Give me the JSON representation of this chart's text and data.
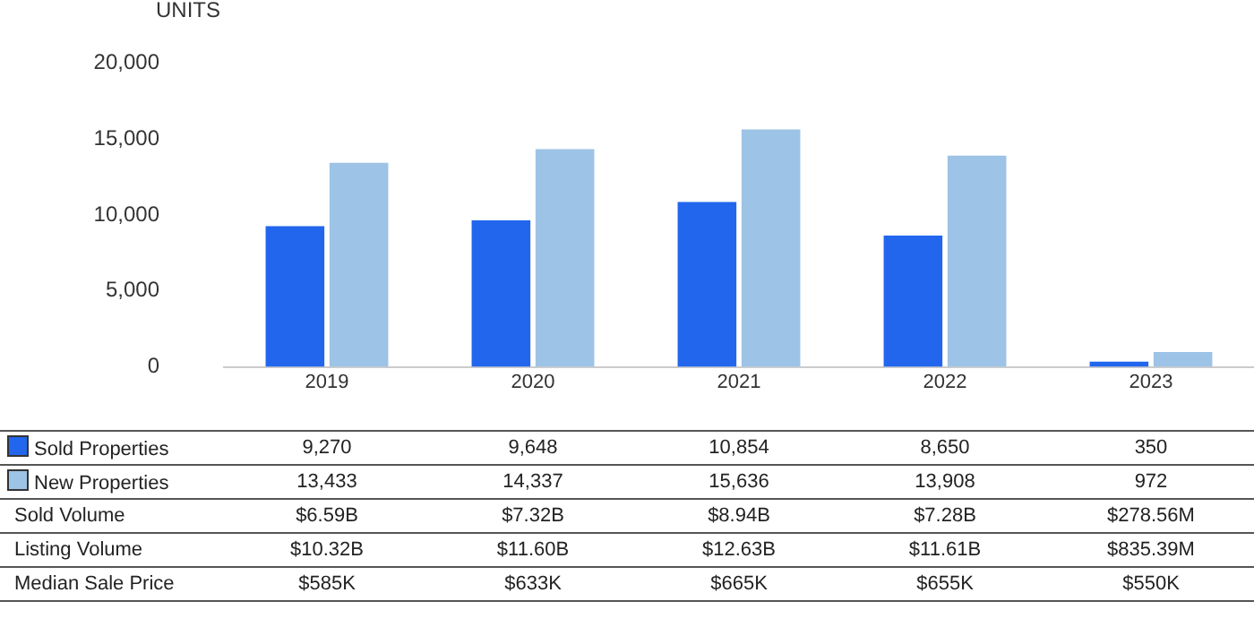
{
  "chart_data": {
    "type": "bar",
    "ylabel": "UNITS",
    "categories": [
      "2019",
      "2020",
      "2021",
      "2022",
      "2023"
    ],
    "series": [
      {
        "name": "Sold Properties",
        "color": "#2266ee",
        "values": [
          9270,
          9648,
          10854,
          8650,
          350
        ],
        "value_labels": [
          "9,270",
          "9,648",
          "10,854",
          "8,650",
          "350"
        ]
      },
      {
        "name": "New Properties",
        "color": "#9dc3e6",
        "values": [
          13433,
          14337,
          15636,
          13908,
          972
        ],
        "value_labels": [
          "13,433",
          "14,337",
          "15,636",
          "13,908",
          "972"
        ]
      }
    ],
    "ylim": [
      0,
      20000
    ],
    "yticks": [
      0,
      {
        "value": 5000,
        "label": "5,000"
      },
      {
        "value": 10000,
        "label": "10,000"
      },
      {
        "value": 15000,
        "label": "15,000"
      },
      {
        "value": 20000,
        "label": "20,000"
      }
    ],
    "grid": false,
    "legend": "bottom left",
    "annotations": [
      "Sold Volume",
      "$6.59B",
      "$7.32B",
      "$8.94B",
      "$7.28B",
      "$278.56M",
      "Listing Volume",
      "$10.32B",
      "$11.60B",
      "$12.63B",
      "$11.61B",
      "$835.39M",
      "Median Sale Price",
      "$585K",
      "$633K",
      "$665K",
      "$655K",
      "$550K"
    ]
  }
}
